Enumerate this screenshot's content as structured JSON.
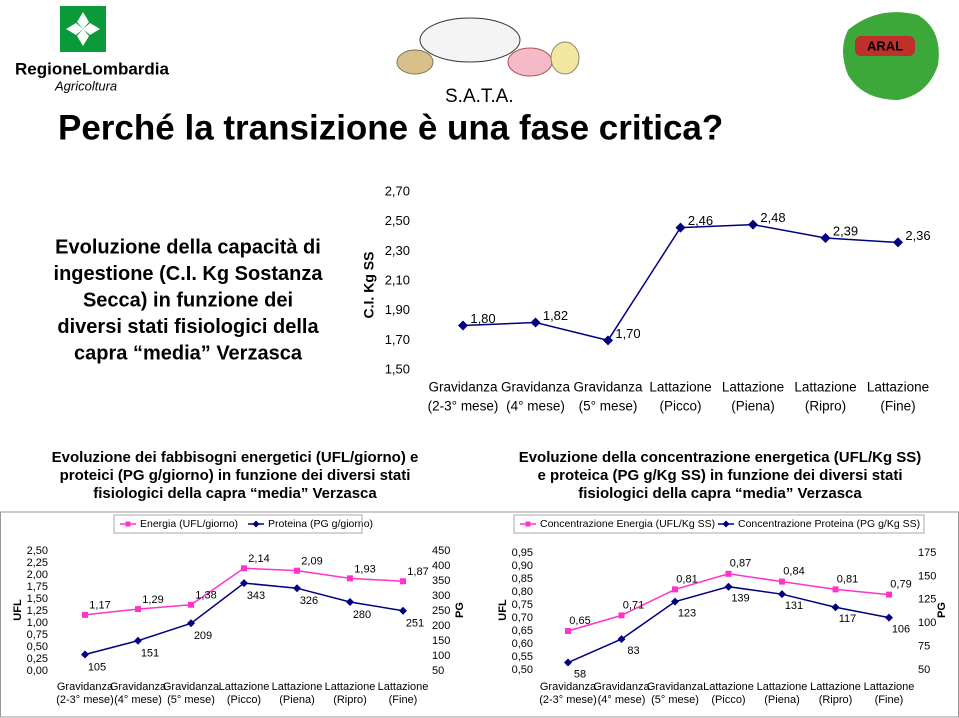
{
  "header": {
    "region": "RegioneLombardia",
    "sub": "Agricoltura",
    "sata": "S.A.T.A.",
    "aral": "ARAL"
  },
  "title": "Perché la transizione è una fase critica?",
  "intro": {
    "lines": [
      "Evoluzione della capacità di",
      "ingestione (C.I. Kg Sostanza",
      "Secca) in funzione dei",
      "diversi stati fisiologici della",
      "capra “media” Verzasca"
    ]
  },
  "chart_data": [
    {
      "type": "line",
      "ylabel": "C.I. Kg SS",
      "categories": [
        [
          "Gravidanza",
          "(2-3° mese)"
        ],
        [
          "Gravidanza",
          "(4° mese)"
        ],
        [
          "Gravidanza",
          "(5° mese)"
        ],
        [
          "Lattazione",
          "(Picco)"
        ],
        [
          "Lattazione",
          "(Piena)"
        ],
        [
          "Lattazione",
          "(Ripro)"
        ],
        [
          "Lattazione",
          "(Fine)"
        ]
      ],
      "series": [
        {
          "color": "#000080",
          "marker": "diamond",
          "values": [
            1.8,
            1.82,
            1.7,
            2.46,
            2.48,
            2.39,
            2.36
          ],
          "value_labels": [
            "1,80",
            "1,82",
            "1,70",
            "2,46",
            "2,48",
            "2,39",
            "2,36"
          ]
        }
      ],
      "ylim": [
        1.5,
        2.7
      ],
      "yticks": [
        {
          "value": 1.5,
          "label": "1,50"
        },
        {
          "value": 1.7,
          "label": "1,70"
        },
        {
          "value": 1.9,
          "label": "1,90"
        },
        {
          "value": 2.1,
          "label": "2,10"
        },
        {
          "value": 2.3,
          "label": "2,30"
        },
        {
          "value": 2.5,
          "label": "2,50"
        },
        {
          "value": 2.7,
          "label": "2,70"
        }
      ]
    },
    {
      "type": "line",
      "title": [
        "Evoluzione dei fabbisogni energetici (UFL/giorno) e",
        "proteici (PG g/giorno) in funzione dei diversi stati",
        "fisiologici della capra “media” Verzasca"
      ],
      "ylabel": "UFL",
      "y2label": "PG",
      "categories": [
        [
          "Gravidanza",
          "(2-3° mese)"
        ],
        [
          "Gravidanza",
          "(4° mese)"
        ],
        [
          "Gravidanza",
          "(5° mese)"
        ],
        [
          "Lattazione",
          "(Picco)"
        ],
        [
          "Lattazione",
          "(Piena)"
        ],
        [
          "Lattazione",
          "(Ripro)"
        ],
        [
          "Lattazione",
          "(Fine)"
        ]
      ],
      "series": [
        {
          "name": "Energia (UFL/giorno)",
          "color": "#ff33cc",
          "marker": "square",
          "values": [
            1.17,
            1.29,
            1.38,
            2.14,
            2.09,
            1.93,
            1.87
          ],
          "value_labels": [
            "1,17",
            "1,29",
            "1,38",
            "2,14",
            "2,09",
            "1,93",
            "1,87"
          ]
        },
        {
          "name": "Proteina (PG g/giorno)",
          "color": "#000080",
          "marker": "diamond",
          "axis": "y2",
          "values": [
            105,
            151,
            209,
            343,
            326,
            280,
            251
          ]
        }
      ],
      "ylim": [
        0,
        2.5
      ],
      "yticks": [
        {
          "value": 0,
          "label": "0,00"
        },
        {
          "value": 0.25,
          "label": "0,25"
        },
        {
          "value": 0.5,
          "label": "0,50"
        },
        {
          "value": 0.75,
          "label": "0,75"
        },
        {
          "value": 1,
          "label": "1,00"
        },
        {
          "value": 1.25,
          "label": "1,25"
        },
        {
          "value": 1.5,
          "label": "1,50"
        },
        {
          "value": 1.75,
          "label": "1,75"
        },
        {
          "value": 2,
          "label": "2,00"
        },
        {
          "value": 2.25,
          "label": "2,25"
        },
        {
          "value": 2.5,
          "label": "2,50"
        }
      ],
      "y2lim": [
        50,
        450
      ],
      "y2ticks": [
        50,
        100,
        150,
        200,
        250,
        300,
        350,
        400,
        450
      ]
    },
    {
      "type": "line",
      "title": [
        "Evoluzione della concentrazione energetica (UFL/Kg SS)",
        "e proteica (PG g/Kg SS) in funzione dei diversi stati",
        "fisiologici della capra “media” Verzasca"
      ],
      "ylabel": "UFL",
      "y2label": "PG",
      "categories": [
        [
          "Gravidanza",
          "(2-3° mese)"
        ],
        [
          "Gravidanza",
          "(4° mese)"
        ],
        [
          "Gravidanza",
          "(5° mese)"
        ],
        [
          "Lattazione",
          "(Picco)"
        ],
        [
          "Lattazione",
          "(Piena)"
        ],
        [
          "Lattazione",
          "(Ripro)"
        ],
        [
          "Lattazione",
          "(Fine)"
        ]
      ],
      "series": [
        {
          "name": "Concentrazione Energia (UFL/Kg SS)",
          "color": "#ff33cc",
          "marker": "square",
          "values": [
            0.65,
            0.71,
            0.81,
            0.87,
            0.84,
            0.81,
            0.79
          ],
          "value_labels": [
            "0,65",
            "0,71",
            "0,81",
            "0,87",
            "0,84",
            "0,81",
            "0,79"
          ]
        },
        {
          "name": "Concentrazione Proteina (PG g/Kg SS)",
          "color": "#000080",
          "marker": "diamond",
          "axis": "y2",
          "values": [
            58,
            83,
            123,
            139,
            131,
            117,
            106
          ]
        }
      ],
      "ylim": [
        0.5,
        0.95
      ],
      "yticks": [
        {
          "value": 0.5,
          "label": "0,50"
        },
        {
          "value": 0.55,
          "label": "0,55"
        },
        {
          "value": 0.6,
          "label": "0,60"
        },
        {
          "value": 0.65,
          "label": "0,65"
        },
        {
          "value": 0.7,
          "label": "0,70"
        },
        {
          "value": 0.75,
          "label": "0,75"
        },
        {
          "value": 0.8,
          "label": "0,80"
        },
        {
          "value": 0.85,
          "label": "0,85"
        },
        {
          "value": 0.9,
          "label": "0,90"
        },
        {
          "value": 0.95,
          "label": "0,95"
        }
      ],
      "y2lim": [
        50,
        175
      ],
      "y2ticks": [
        50,
        75,
        100,
        125,
        150,
        175
      ]
    }
  ]
}
